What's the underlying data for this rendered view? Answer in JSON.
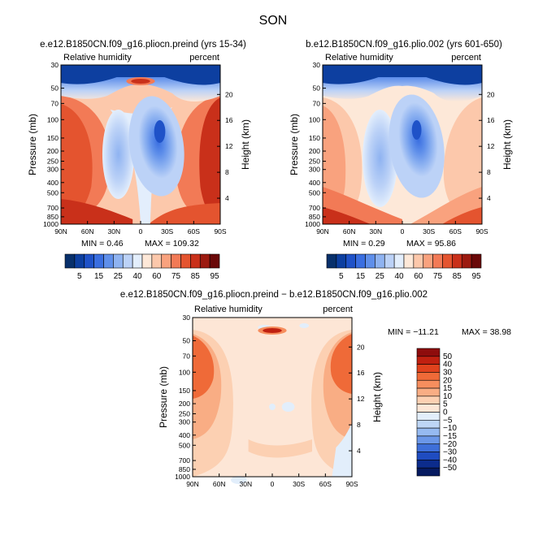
{
  "figure": {
    "season": "SON",
    "panel_a_title": "e.e12.B1850CN.f09_g16.pliocn.preind (yrs 15-34)",
    "panel_b_title": "b.e12.B1850CN.f09_g16.plio.002 (yrs 601-650)",
    "panel_c_title": "e.e12.B1850CN.f09_g16.pliocn.preind − b.e12.B1850CN.f09_g16.plio.002"
  },
  "chart_data": [
    {
      "type": "heatmap",
      "id": "panel_a",
      "title": "e.e12.B1850CN.f09_g16.pliocn.preind (yrs 15-34)",
      "field_label": "Relative humidity",
      "units": "percent",
      "ylabel": "Pressure (mb)",
      "y2label": "Height (km)",
      "x_ticks": [
        "90N",
        "60N",
        "30N",
        "0",
        "30S",
        "60S",
        "90S"
      ],
      "y_ticks": [
        "30",
        "50",
        "70",
        "100",
        "150",
        "200",
        "250",
        "300",
        "400",
        "500",
        "700",
        "850",
        "1000"
      ],
      "y2_ticks": [
        "20",
        "16",
        "12",
        "8",
        "4"
      ],
      "min_label": "MIN =   0.46",
      "max_label": "MAX = 109.32",
      "min": 0.46,
      "max": 109.32,
      "colorbar": [
        "5",
        "15",
        "25",
        "40",
        "60",
        "75",
        "85",
        "95"
      ]
    },
    {
      "type": "heatmap",
      "id": "panel_b",
      "title": "b.e12.B1850CN.f09_g16.plio.002 (yrs 601-650)",
      "field_label": "Relative humidity",
      "units": "percent",
      "ylabel": "Pressure (mb)",
      "y2label": "Height (km)",
      "x_ticks": [
        "90N",
        "60N",
        "30N",
        "0",
        "30S",
        "60S",
        "90S"
      ],
      "y_ticks": [
        "30",
        "50",
        "70",
        "100",
        "150",
        "200",
        "250",
        "300",
        "400",
        "500",
        "700",
        "850",
        "1000"
      ],
      "y2_ticks": [
        "20",
        "16",
        "12",
        "8",
        "4"
      ],
      "min_label": "MIN =   0.29",
      "max_label": "MAX =  95.86",
      "min": 0.29,
      "max": 95.86,
      "colorbar": [
        "5",
        "15",
        "25",
        "40",
        "60",
        "75",
        "85",
        "95"
      ]
    },
    {
      "type": "heatmap",
      "id": "panel_c",
      "title": "e.e12.B1850CN.f09_g16.pliocn.preind − b.e12.B1850CN.f09_g16.plio.002",
      "field_label": "Relative humidity",
      "units": "percent",
      "ylabel": "Pressure (mb)",
      "y2label": "Height (km)",
      "x_ticks": [
        "90N",
        "60N",
        "30N",
        "0",
        "30S",
        "60S",
        "90S"
      ],
      "y_ticks": [
        "30",
        "50",
        "70",
        "100",
        "150",
        "200",
        "250",
        "300",
        "400",
        "500",
        "700",
        "850",
        "1000"
      ],
      "y2_ticks": [
        "20",
        "16",
        "12",
        "8",
        "4"
      ],
      "min_label": "MIN = −11.21",
      "max_label": "MAX =  38.98",
      "min": -11.21,
      "max": 38.98,
      "colorbar": [
        "50",
        "40",
        "30",
        "20",
        "15",
        "10",
        "5",
        "0",
        "−5",
        "−10",
        "−15",
        "−20",
        "−30",
        "−40",
        "−50"
      ]
    }
  ],
  "colors": {
    "rh_scale": [
      "#08306b",
      "#0d3fa0",
      "#1f52c8",
      "#3a6ee0",
      "#5f8fea",
      "#8fb3f1",
      "#bcd2f7",
      "#e3eefc",
      "#fde8d8",
      "#fcc8ab",
      "#f9a27e",
      "#f27a56",
      "#e4542f",
      "#c9301a",
      "#9c1a10",
      "#6a0808"
    ],
    "diff_scale": [
      "#8e0c0c",
      "#c02010",
      "#e0421d",
      "#ef6a38",
      "#f68e5e",
      "#f9ad84",
      "#fcd0b2",
      "#fde6d6",
      "#e2eefb",
      "#bed6f6",
      "#96baf1",
      "#6b97e8",
      "#3e6fd9",
      "#1f4cc0",
      "#0c2c8c",
      "#061a60"
    ]
  }
}
